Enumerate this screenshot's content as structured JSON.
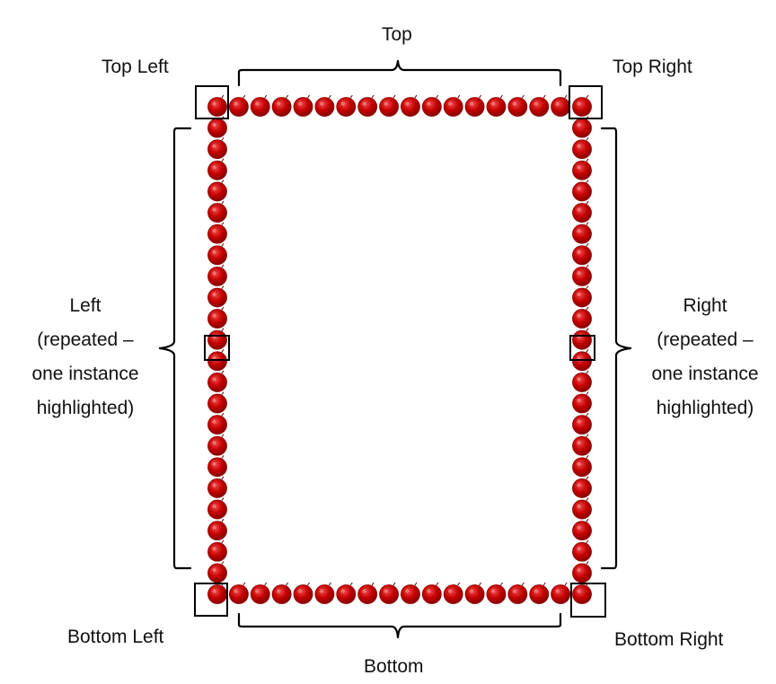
{
  "labels": {
    "top": "Top",
    "top_left": "Top Left",
    "top_right": "Top Right",
    "left": [
      "Left",
      "(repeated –",
      "one instance",
      "highlighted)"
    ],
    "right": [
      "Right",
      "(repeated –",
      "one instance",
      "highlighted)"
    ],
    "bottom_left": "Bottom Left",
    "bottom_right": "Bottom Right",
    "bottom": "Bottom"
  },
  "colors": {
    "bead": "#c40000",
    "bead_dark": "#8a0000",
    "bead_light": "#ef4a4a",
    "highlight_box": "#000000",
    "bracket": "#000000"
  },
  "icons": {
    "bead": "red-bead-icon",
    "highlight": "square-outline"
  }
}
